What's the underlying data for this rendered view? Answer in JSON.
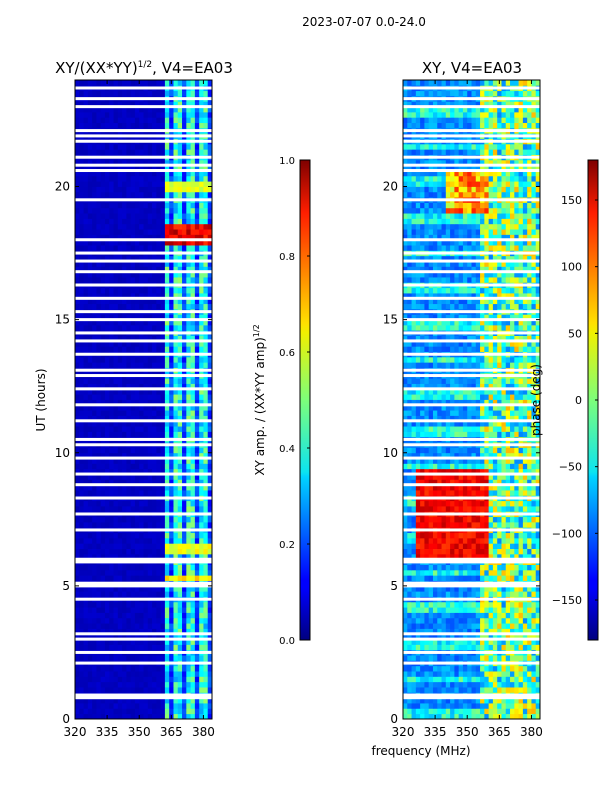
{
  "figure": {
    "suptitle": "2023-07-07 0.0-24.0",
    "shared_xlabel": "frequency (MHz)"
  },
  "chart_data": [
    {
      "type": "heatmap",
      "title_main": "XY/(XX*YY)",
      "title_sup": "1/2",
      "title_tail": ", V4=EA03",
      "ylabel": "UT (hours)",
      "xlim": [
        320,
        384
      ],
      "ylim": [
        0,
        24
      ],
      "xticks": [
        320,
        335,
        350,
        365,
        380
      ],
      "yticks": [
        0,
        5,
        10,
        15,
        20
      ],
      "colorbar": {
        "label": "XY amp. / (XX*YY amp)",
        "label_sup": "1/2",
        "range": [
          0.0,
          1.0
        ],
        "ticks": [
          "0.0",
          "0.2",
          "0.4",
          "0.6",
          "0.8",
          "1.0"
        ],
        "cmap": "jet"
      },
      "data_summary": "Amplitude near 0.05 below 361 MHz; 0.2-0.5 in bands 361-384 MHz; peaks ~0.9 around 17.8-18.6 h; ~0.6 near 5.3 h and 6.5 h; flagged (white) rows throughout",
      "flagged_hours": [
        0.8,
        0.9,
        2.1,
        2.5,
        3.0,
        3.2,
        4.5,
        5.0,
        5.1,
        5.9,
        6.0,
        7.1,
        7.7,
        8.3,
        8.8,
        9.2,
        9.8,
        10.3,
        10.5,
        11.2,
        11.8,
        12.4,
        12.9,
        13.1,
        13.7,
        14.2,
        14.5,
        15.0,
        15.3,
        15.8,
        16.3,
        16.8,
        17.2,
        17.5,
        18.0,
        19.5,
        20.6,
        20.8,
        21.1,
        21.7,
        21.9,
        22.1,
        23.0,
        23.3,
        23.7
      ]
    },
    {
      "type": "heatmap",
      "title_main": "XY, V4=EA03",
      "title_sup": "",
      "title_tail": "",
      "ylabel": "",
      "xlim": [
        320,
        384
      ],
      "ylim": [
        0,
        24
      ],
      "xticks": [
        320,
        335,
        350,
        365,
        380
      ],
      "yticks": [
        0,
        5,
        10,
        15,
        20
      ],
      "colorbar": {
        "label": "phase (deg)",
        "label_sup": "",
        "range": [
          -180,
          180
        ],
        "ticks": [
          "−150",
          "−100",
          "−50",
          "0",
          "50",
          "100",
          "150"
        ],
        "tick_values": [
          -150,
          -100,
          -50,
          0,
          50,
          100,
          150
        ],
        "cmap": "jet"
      },
      "data_summary": "Phase mostly -120 to -60 deg with striped bands; strong positive phase (~150 deg) 325-360 MHz between 6 and 9.5 h; mixed -30 to 60 deg in upper frequencies",
      "flagged_hours": [
        0.8,
        0.9,
        2.1,
        2.5,
        3.0,
        3.2,
        4.5,
        5.0,
        5.1,
        5.9,
        6.0,
        7.1,
        7.7,
        8.3,
        8.8,
        9.2,
        9.8,
        10.3,
        10.5,
        11.2,
        11.8,
        12.4,
        12.9,
        13.1,
        13.7,
        14.2,
        14.5,
        15.0,
        15.3,
        15.8,
        16.3,
        16.8,
        17.2,
        17.5,
        18.0,
        19.5,
        20.6,
        20.8,
        21.1,
        21.7,
        21.9,
        22.1,
        23.0,
        23.3,
        23.7
      ]
    }
  ]
}
